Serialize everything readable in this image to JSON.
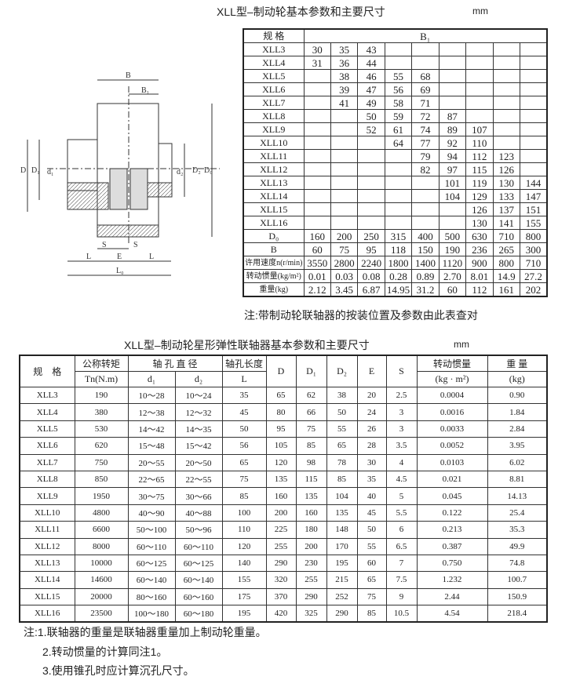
{
  "top": {
    "title": "XLL型–制动轮基本参数和主要尺寸",
    "unit": "mm",
    "header": {
      "spec": "规 格",
      "b1": "B₁"
    },
    "rows": [
      {
        "spec": "XLL3",
        "b1": [
          "30",
          "35",
          "43",
          "",
          "",
          "",
          "",
          "",
          ""
        ]
      },
      {
        "spec": "XLL4",
        "b1": [
          "31",
          "36",
          "44",
          "",
          "",
          "",
          "",
          "",
          ""
        ]
      },
      {
        "spec": "XLL5",
        "b1": [
          "",
          "38",
          "46",
          "55",
          "68",
          "",
          "",
          "",
          ""
        ]
      },
      {
        "spec": "XLL6",
        "b1": [
          "",
          "39",
          "47",
          "56",
          "69",
          "",
          "",
          "",
          ""
        ]
      },
      {
        "spec": "XLL7",
        "b1": [
          "",
          "41",
          "49",
          "58",
          "71",
          "",
          "",
          "",
          ""
        ]
      },
      {
        "spec": "XLL8",
        "b1": [
          "",
          "",
          "50",
          "59",
          "72",
          "87",
          "",
          "",
          ""
        ]
      },
      {
        "spec": "XLL9",
        "b1": [
          "",
          "",
          "52",
          "61",
          "74",
          "89",
          "107",
          "",
          ""
        ]
      },
      {
        "spec": "XLL10",
        "b1": [
          "",
          "",
          "",
          "64",
          "77",
          "92",
          "110",
          "",
          ""
        ]
      },
      {
        "spec": "XLL11",
        "b1": [
          "",
          "",
          "",
          "",
          "79",
          "94",
          "112",
          "123",
          ""
        ]
      },
      {
        "spec": "XLL12",
        "b1": [
          "",
          "",
          "",
          "",
          "82",
          "97",
          "115",
          "126",
          ""
        ]
      },
      {
        "spec": "XLL13",
        "b1": [
          "",
          "",
          "",
          "",
          "",
          "101",
          "119",
          "130",
          "144"
        ]
      },
      {
        "spec": "XLL14",
        "b1": [
          "",
          "",
          "",
          "",
          "",
          "104",
          "129",
          "133",
          "147"
        ]
      },
      {
        "spec": "XLL15",
        "b1": [
          "",
          "",
          "",
          "",
          "",
          "",
          "126",
          "137",
          "151"
        ]
      },
      {
        "spec": "XLL16",
        "b1": [
          "",
          "",
          "",
          "",
          "",
          "",
          "130",
          "141",
          "155"
        ]
      }
    ],
    "params": [
      {
        "label": "D₀",
        "values": [
          "160",
          "200",
          "250",
          "315",
          "400",
          "500",
          "630",
          "710",
          "800"
        ]
      },
      {
        "label": "B",
        "values": [
          "60",
          "75",
          "95",
          "118",
          "150",
          "190",
          "236",
          "265",
          "300"
        ]
      },
      {
        "label": "许用速度n(r/min)",
        "values": [
          "3550",
          "2800",
          "2240",
          "1800",
          "1400",
          "1120",
          "900",
          "800",
          "710"
        ]
      },
      {
        "label": "转动惯量(kg/m²)",
        "values": [
          "0.01",
          "0.03",
          "0.08",
          "0.28",
          "0.89",
          "2.70",
          "8.01",
          "14.9",
          "27.2"
        ]
      },
      {
        "label": "重量(kg)",
        "values": [
          "2.12",
          "3.45",
          "6.87",
          "14.95",
          "31.2",
          "60",
          "112",
          "161",
          "202"
        ]
      }
    ],
    "note": "注:带制动轮联轴器的按装位置及参数由此表查对"
  },
  "drawing": {
    "labels": {
      "B": "B",
      "B1": "B₁",
      "D": "D",
      "D1": "D₁",
      "d1": "d₁",
      "d2": "d₂",
      "D2": "D₂",
      "D0": "D₀",
      "S": "S",
      "E": "E",
      "L": "L",
      "L0": "L₀"
    }
  },
  "bottom": {
    "title": "XLL型–制动轮星形弹性联轴器基本参数和主要尺寸",
    "unit": "mm",
    "header": {
      "spec": "规　格",
      "torque": "公称转矩",
      "torque_unit": "Tn(N.m)",
      "bore": "轴 孔 直 径",
      "d1": "d₁",
      "d2": "d₂",
      "bore_len": "轴孔长度",
      "bore_len_sym": "L",
      "D": "D",
      "D1": "D₁",
      "D2": "D₂",
      "E": "E",
      "S": "S",
      "inertia": "转动惯量",
      "inertia_unit": "(kg · m²)",
      "weight": "重 量",
      "weight_unit": "(kg)"
    },
    "rows": [
      [
        "XLL3",
        "190",
        "10～28",
        "10～24",
        "35",
        "65",
        "62",
        "38",
        "20",
        "2.5",
        "0.0004",
        "0.90"
      ],
      [
        "XLL4",
        "380",
        "12～38",
        "12～32",
        "45",
        "80",
        "66",
        "50",
        "24",
        "3",
        "0.0016",
        "1.84"
      ],
      [
        "XLL5",
        "530",
        "14～42",
        "14～35",
        "50",
        "95",
        "75",
        "55",
        "26",
        "3",
        "0.0033",
        "2.84"
      ],
      [
        "XLL6",
        "620",
        "15～48",
        "15～42",
        "56",
        "105",
        "85",
        "65",
        "28",
        "3.5",
        "0.0052",
        "3.95"
      ],
      [
        "XLL7",
        "750",
        "20～55",
        "20～50",
        "65",
        "120",
        "98",
        "78",
        "30",
        "4",
        "0.0103",
        "6.02"
      ],
      [
        "XLL8",
        "850",
        "22～65",
        "22～55",
        "75",
        "135",
        "115",
        "85",
        "35",
        "4.5",
        "0.021",
        "8.81"
      ],
      [
        "XLL9",
        "1950",
        "30～75",
        "30～66",
        "85",
        "160",
        "135",
        "104",
        "40",
        "5",
        "0.045",
        "14.13"
      ],
      [
        "XLL10",
        "4800",
        "40～90",
        "40～88",
        "100",
        "200",
        "160",
        "135",
        "45",
        "5.5",
        "0.122",
        "25.4"
      ],
      [
        "XLL11",
        "6600",
        "50～100",
        "50～96",
        "110",
        "225",
        "180",
        "148",
        "50",
        "6",
        "0.213",
        "35.3"
      ],
      [
        "XLL12",
        "8000",
        "60～110",
        "60～110",
        "120",
        "255",
        "200",
        "170",
        "55",
        "6.5",
        "0.387",
        "49.9"
      ],
      [
        "XLL13",
        "10000",
        "60～125",
        "60～125",
        "140",
        "290",
        "230",
        "195",
        "60",
        "7",
        "0.750",
        "74.8"
      ],
      [
        "XLL14",
        "14600",
        "60～140",
        "60～140",
        "155",
        "320",
        "255",
        "215",
        "65",
        "7.5",
        "1.232",
        "100.7"
      ],
      [
        "XLL15",
        "20000",
        "80～160",
        "60～160",
        "175",
        "370",
        "290",
        "252",
        "75",
        "9",
        "2.44",
        "150.9"
      ],
      [
        "XLL16",
        "23500",
        "100～180",
        "60～180",
        "195",
        "420",
        "325",
        "290",
        "85",
        "10.5",
        "4.54",
        "218.4"
      ]
    ],
    "notes": [
      "注:1.联轴器的重量是联轴器重量加上制动轮重量。",
      "2.转动惯量的计算同注1。",
      "3.使用锥孔时应计算沉孔尺寸。"
    ]
  }
}
